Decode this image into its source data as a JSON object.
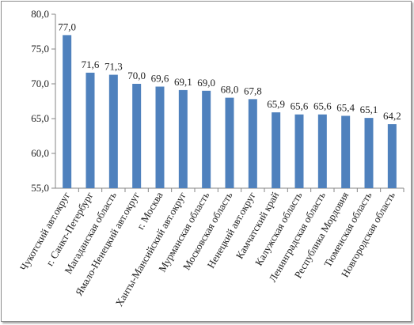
{
  "chart_data": {
    "type": "bar",
    "title": "",
    "xlabel": "",
    "ylabel": "",
    "ylim": [
      55,
      80
    ],
    "yticks": [
      "80,0",
      "75,0",
      "70,0",
      "65,0",
      "60,0",
      "55,0"
    ],
    "grid": false,
    "bar_color": "#4f81bd",
    "categories": [
      "Чукотский авт.округ",
      "г. Санкт-Петербург",
      "Магаданская область",
      "Ямало-Ненецкий авт.округ",
      "г. Москва",
      "Ханты-Мансийский авт.округ",
      "Мурманская область",
      "Московская область",
      "Ненецкий авт.округ",
      "Камчатский край",
      "Калужская область",
      "Ленинградская область",
      "Республика Мордовия",
      "Тюменская область",
      "Новгородская область"
    ],
    "values": [
      77.0,
      71.6,
      71.3,
      70.0,
      69.6,
      69.1,
      69.0,
      68.0,
      67.8,
      65.9,
      65.6,
      65.6,
      65.4,
      65.1,
      64.2
    ],
    "value_labels": [
      "77,0",
      "71,6",
      "71,3",
      "70,0",
      "69,6",
      "69,1",
      "69,0",
      "68,0",
      "67,8",
      "65,9",
      "65,6",
      "65,6",
      "65,4",
      "65,1",
      "64,2"
    ]
  }
}
